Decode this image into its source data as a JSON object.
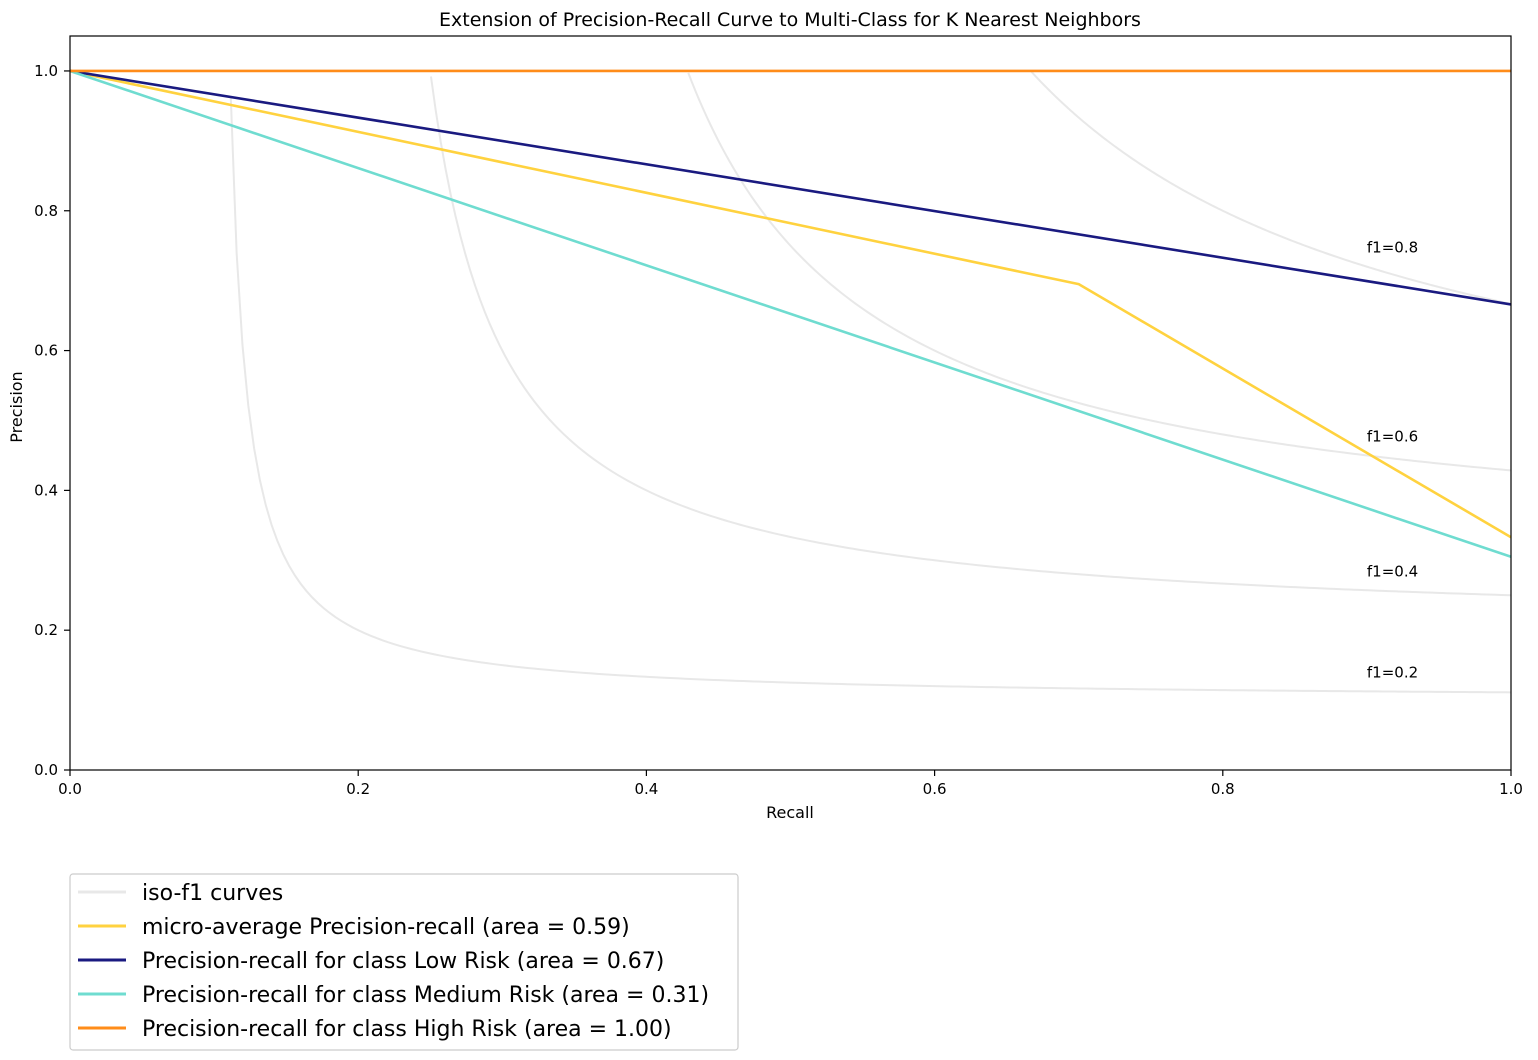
{
  "chart_data": {
    "type": "line",
    "title": "Extension of Precision-Recall Curve to Multi-Class for K Nearest Neighbors",
    "xlabel": "Recall",
    "ylabel": "Precision",
    "xlim": [
      0.0,
      1.0
    ],
    "ylim": [
      0.0,
      1.05
    ],
    "x_ticks": [
      "0.0",
      "0.2",
      "0.4",
      "0.6",
      "0.8",
      "1.0"
    ],
    "y_ticks": [
      "0.0",
      "0.2",
      "0.4",
      "0.6",
      "0.8",
      "1.0"
    ],
    "grid": false,
    "legend_position": "below-left",
    "iso_f1": {
      "legend_label": "iso-f1 curves",
      "color": "#e8e8e8",
      "levels": [
        {
          "f1": 0.2,
          "label": "f1=0.2"
        },
        {
          "f1": 0.4,
          "label": "f1=0.4"
        },
        {
          "f1": 0.6,
          "label": "f1=0.6"
        },
        {
          "f1": 0.8,
          "label": "f1=0.8"
        }
      ]
    },
    "series": [
      {
        "name": "micro-average Precision-recall (area = 0.59)",
        "color": "#ffd23f",
        "x": [
          0.0,
          0.7,
          1.0
        ],
        "y": [
          1.0,
          0.695,
          0.333
        ]
      },
      {
        "name": "Precision-recall for class Low Risk (area = 0.67)",
        "color": "#1a1a80",
        "x": [
          0.0,
          1.0
        ],
        "y": [
          1.0,
          0.666
        ]
      },
      {
        "name": "Precision-recall for class Medium Risk (area = 0.31)",
        "color": "#6fdcd0",
        "x": [
          0.0,
          1.0
        ],
        "y": [
          1.0,
          0.305
        ]
      },
      {
        "name": "Precision-recall for class High Risk (area = 1.00)",
        "color": "#ff8c1a",
        "x": [
          0.0,
          1.0
        ],
        "y": [
          1.0,
          1.0
        ]
      }
    ]
  }
}
